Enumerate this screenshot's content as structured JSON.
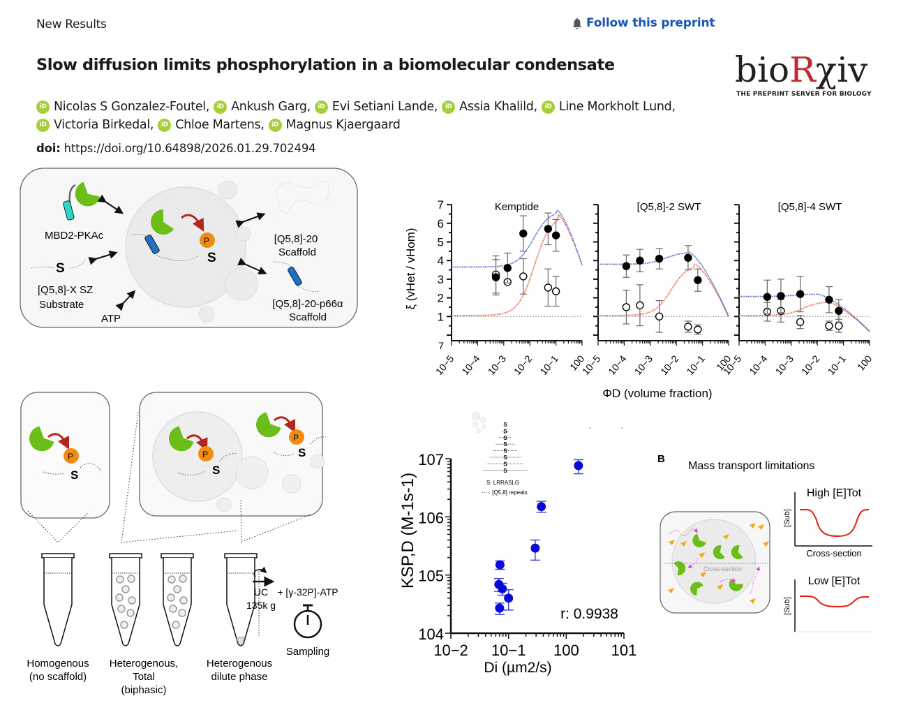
{
  "header": {
    "section_label": "New Results",
    "follow_label": "Follow this preprint",
    "follow_icon": "bell-icon"
  },
  "article": {
    "title": "Slow diffusion limits phosphorylation in a biomolecular condensate",
    "authors_line1": [
      "Nicolas S Gonzalez-Foutel,",
      "Ankush Garg,",
      "Evi Setiani Lande,",
      "Assia Khalild,",
      "Line Morkholt Lund,"
    ],
    "authors_line2": [
      "Victoria Birkedal,",
      "Chloe Martens,",
      "Magnus Kjaergaard"
    ],
    "author_icon": "orcid-icon",
    "doi_label": "doi:",
    "doi_url": "https://doi.org/10.64898/2026.01.29.702494"
  },
  "logo": {
    "word_pre": "bio",
    "word_r": "R",
    "word_post": "χiv",
    "tagline": "THE PREPRINT SERVER FOR BIOLOGY",
    "accent_color": "#c2282f"
  },
  "figure": {
    "schematic_top": {
      "labels": {
        "enzyme": "MBD2-PKAc",
        "substrate_line1": "[Q5,8]-X SZ",
        "substrate_line2": "Substrate",
        "atp": "ATP",
        "scaffold1_line1": "[Q5,8]-20",
        "scaffold1_line2": "Scaffold",
        "scaffold2_line1": "[Q5,8]-20-p66α",
        "scaffold2_line2": "Scaffold",
        "s": "S",
        "p": "P"
      }
    },
    "schematic_bottom": {
      "tube_labels": [
        [
          "Homogenous",
          "(no scaffold)"
        ],
        [
          "Heterogenous,",
          "Total",
          "(biphasic)"
        ],
        [
          "Heterogenous",
          "dilute phase"
        ]
      ],
      "uc_label": [
        "UC",
        "135k g"
      ],
      "atp_label": "+ [γ-32P]-ATP",
      "sampling_label": "Sampling",
      "s": "S",
      "p": "P"
    },
    "panel_b": {
      "letter": "B",
      "title": "Mass transport limitations",
      "inner_label": "Cross-section",
      "high_label": "High [E]Tot",
      "low_label": "Low [E]Tot",
      "y_label": "[Sub]",
      "x_label": "Cross-section"
    }
  },
  "chart_data": [
    {
      "type": "scatter",
      "title": "",
      "ylabel": "ξ (vHet / vHom)",
      "xlabel": "ΦD (volume fraction)",
      "xscale": "log",
      "xlim": [
        1e-05,
        1
      ],
      "ylim": [
        0,
        7
      ],
      "yticks": [
        1,
        2,
        3,
        4,
        5,
        6,
        7
      ],
      "xticks": [
        "10−5",
        "10−4",
        "10−3",
        "10−2",
        "10−1",
        "100"
      ],
      "reference_line": 1,
      "panels": [
        {
          "title": "Kemptide",
          "filled": [
            {
              "x": 0.0005,
              "y": 3.1,
              "err": 0.95
            },
            {
              "x": 0.0014,
              "y": 3.6,
              "err": 0.8
            },
            {
              "x": 0.0056,
              "y": 5.45,
              "err": 0.95
            },
            {
              "x": 0.05,
              "y": 5.7,
              "err": 0.85
            },
            {
              "x": 0.1,
              "y": 5.35,
              "err": 0.85
            }
          ],
          "open": [
            {
              "x": 0.0005,
              "y": 3.25,
              "err": 1.0
            },
            {
              "x": 0.0014,
              "y": 2.85,
              "err": 0.0
            },
            {
              "x": 0.0056,
              "y": 3.15,
              "err": 0.95
            },
            {
              "x": 0.05,
              "y": 2.55,
              "err": 1.0
            },
            {
              "x": 0.1,
              "y": 2.35,
              "err": 0.8
            }
          ],
          "fit_blue": {
            "base": 3.65,
            "peak": 6.7,
            "peak_x": 0.11,
            "end": 3.75
          },
          "fit_red": {
            "base": 1.05,
            "peak": 6.45,
            "peak_x": 0.12,
            "end": 3.75
          }
        },
        {
          "title": "[Q5,8]-2 SWT",
          "filled": [
            {
              "x": 0.00012,
              "y": 3.7,
              "err": 0.6
            },
            {
              "x": 0.0004,
              "y": 4.0,
              "err": 0.6
            },
            {
              "x": 0.0022,
              "y": 4.1,
              "err": 0.55
            },
            {
              "x": 0.028,
              "y": 4.15,
              "err": 0.65
            },
            {
              "x": 0.066,
              "y": 2.95,
              "err": 0.6
            }
          ],
          "open": [
            {
              "x": 0.00012,
              "y": 1.5,
              "err": 0.9
            },
            {
              "x": 0.0004,
              "y": 1.6,
              "err": 1.1
            },
            {
              "x": 0.0022,
              "y": 1.0,
              "err": 0.85
            },
            {
              "x": 0.028,
              "y": 0.45,
              "err": 0.3
            },
            {
              "x": 0.066,
              "y": 0.3,
              "err": 0.25
            }
          ],
          "fit_blue": {
            "base": 3.8,
            "peak": 4.45,
            "peak_x": 0.03,
            "end": 1.0
          },
          "fit_red": {
            "base": 1.05,
            "peak": 3.8,
            "peak_x": 0.05,
            "end": 1.0
          }
        },
        {
          "title": "[Q5,8]-4 SWT",
          "filled": [
            {
              "x": 0.00012,
              "y": 2.05,
              "err": 0.9
            },
            {
              "x": 0.0004,
              "y": 2.1,
              "err": 0.9
            },
            {
              "x": 0.0022,
              "y": 2.2,
              "err": 0.95
            },
            {
              "x": 0.028,
              "y": 1.9,
              "err": 0.7
            },
            {
              "x": 0.066,
              "y": 1.3,
              "err": 0.6
            }
          ],
          "open": [
            {
              "x": 0.00012,
              "y": 1.25,
              "err": 0.5
            },
            {
              "x": 0.0004,
              "y": 1.3,
              "err": 0.6
            },
            {
              "x": 0.0022,
              "y": 0.7,
              "err": 0.35
            },
            {
              "x": 0.028,
              "y": 0.5,
              "err": 0.25
            },
            {
              "x": 0.066,
              "y": 0.5,
              "err": 0.35
            }
          ],
          "fit_blue": {
            "base": 2.07,
            "peak": 2.2,
            "peak_x": 0.01,
            "end": 0.2
          },
          "fit_red": {
            "base": 1.05,
            "peak": 1.8,
            "peak_x": 0.022,
            "end": 0.2
          }
        }
      ],
      "colors": {
        "filled": "#000000",
        "blue_fit": "#5566cc",
        "red_fit": "#ee6655",
        "reference": "#999999"
      }
    },
    {
      "type": "scatter",
      "title": "",
      "ylabel": "KSP,D (M-1s-1)",
      "xlabel": "Di (µm2/s)",
      "xscale": "log",
      "yscale": "log",
      "xlim": [
        0.01,
        10
      ],
      "ylim": [
        10000,
        10000000
      ],
      "xticks": [
        "10−2",
        "10−1",
        "100",
        "101"
      ],
      "yticks": [
        "104",
        "105",
        "106",
        "107"
      ],
      "annotation": "r: 0.9938",
      "inset_legend": [
        "S: LRRASLG",
        "····: [Q5,8] repeats"
      ],
      "points": [
        {
          "x": 1.63,
          "y": 7600000,
          "lo": 5500000,
          "hi": 9600000
        },
        {
          "x": 0.37,
          "y": 1500000,
          "lo": 1200000,
          "hi": 1850000
        },
        {
          "x": 0.29,
          "y": 290000,
          "lo": 180000,
          "hi": 400000
        },
        {
          "x": 0.071,
          "y": 150000,
          "lo": 125000,
          "hi": 175000
        },
        {
          "x": 0.068,
          "y": 69000,
          "lo": 52000,
          "hi": 87000
        },
        {
          "x": 0.078,
          "y": 58000,
          "lo": 45000,
          "hi": 72000
        },
        {
          "x": 0.1,
          "y": 40000,
          "lo": 25000,
          "hi": 56000
        },
        {
          "x": 0.07,
          "y": 27000,
          "lo": 21000,
          "hi": 33000
        }
      ],
      "color": "#0a0ad6"
    }
  ]
}
